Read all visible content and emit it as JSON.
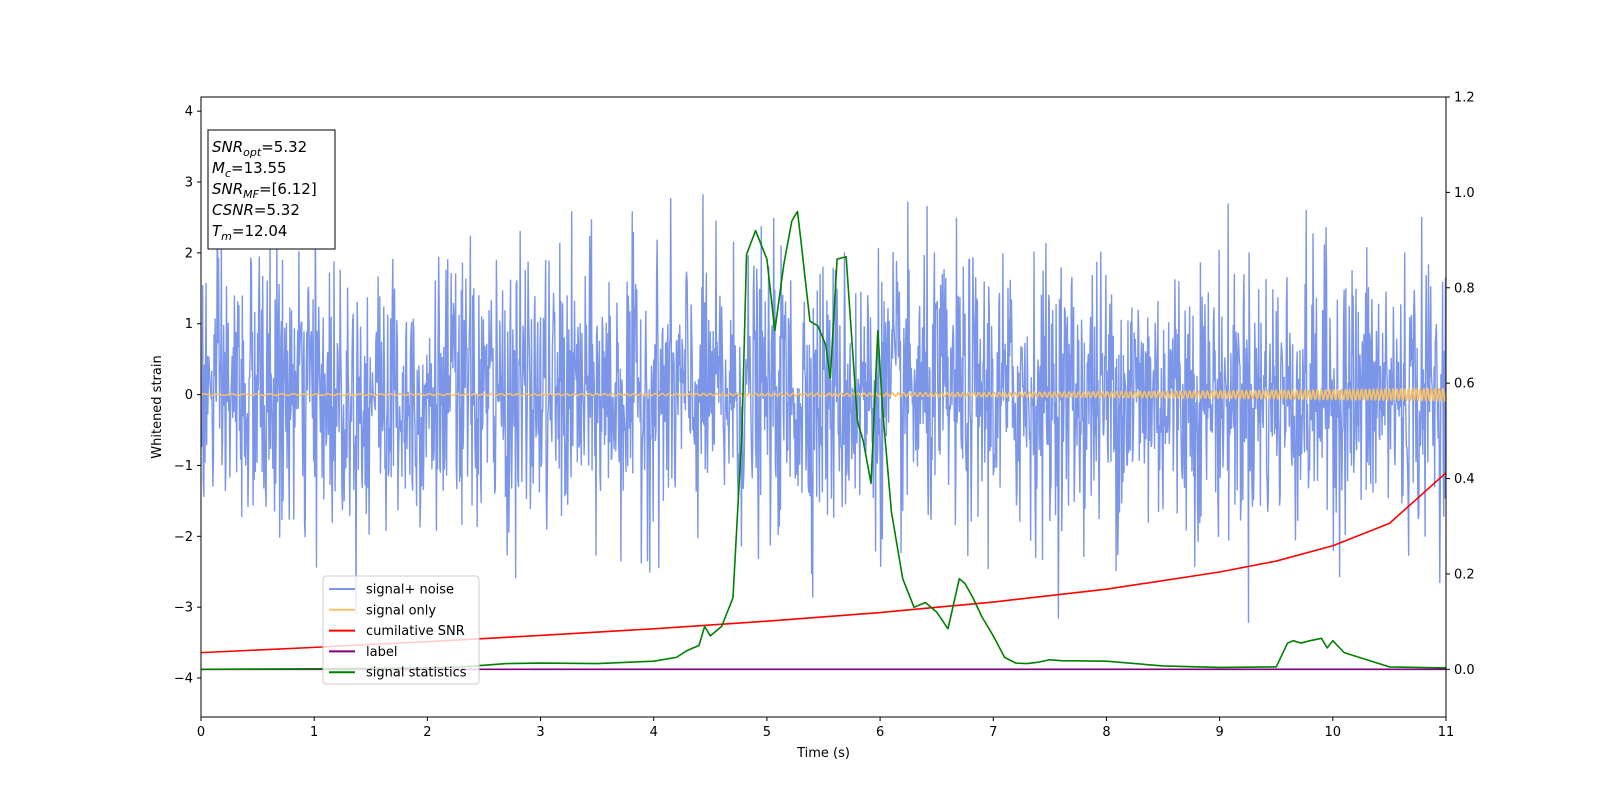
{
  "chart_data": {
    "type": "line",
    "xlabel": "Time (s)",
    "ylabel": "Whitened strain",
    "y2label": "",
    "xlim": [
      0,
      11
    ],
    "ylim": [
      -4.55,
      4.2
    ],
    "y2lim": [
      -0.1,
      1.2
    ],
    "grid": false,
    "legend_position": "lower-left",
    "x_ticks": [
      0,
      1,
      2,
      3,
      4,
      5,
      6,
      7,
      8,
      9,
      10,
      11
    ],
    "y_ticks": [
      4,
      3,
      2,
      1,
      0,
      -1,
      -2,
      -3,
      -4
    ],
    "y_tick_labels": [
      "4",
      "3",
      "2",
      "1",
      "0",
      "−1",
      "−2",
      "−3",
      "−4"
    ],
    "y2_ticks": [
      0.0,
      0.2,
      0.4,
      0.6,
      0.8,
      1.0,
      1.2
    ],
    "y2_tick_labels": [
      "0.0",
      "0.2",
      "0.4",
      "0.6",
      "0.8",
      "1.0",
      "1.2"
    ],
    "info_box": [
      {
        "main": "SNR",
        "sub": "opt",
        "rest": "=5.32"
      },
      {
        "main": "M",
        "sub": "c",
        "rest": "=13.55"
      },
      {
        "main": "SNR",
        "sub": "MF",
        "rest": "=[6.12]"
      },
      {
        "main": "CSNR",
        "sub": "",
        "rest": "=5.32"
      },
      {
        "main": "T",
        "sub": "m",
        "rest": "=12.04"
      }
    ],
    "series": [
      {
        "name": "signal+ noise",
        "color": "#7b96e8",
        "axis": "left",
        "kind": "noise",
        "sample_count": 2200,
        "sigma": 0.95,
        "clip": [
          -4.15,
          3.8
        ]
      },
      {
        "name": "signal only",
        "color": "#f5c06a",
        "axis": "left",
        "kind": "chirp",
        "amplitude_start": 0.01,
        "amplitude_end": 0.09,
        "freq_start_hz": 8,
        "freq_end_hz": 30
      },
      {
        "name": "cumilative SNR",
        "color": "#ff0000",
        "axis": "right",
        "x": [
          0,
          1,
          2,
          3,
          4,
          5,
          6,
          7,
          8,
          9,
          9.5,
          10,
          10.5,
          11
        ],
        "y": [
          0.035,
          0.046,
          0.058,
          0.071,
          0.085,
          0.101,
          0.119,
          0.141,
          0.168,
          0.204,
          0.227,
          0.259,
          0.306,
          0.412
        ]
      },
      {
        "name": "label",
        "color": "#800080",
        "axis": "right",
        "x": [
          0,
          11
        ],
        "y": [
          0.0,
          0.0
        ]
      },
      {
        "name": "signal statistics",
        "color": "#008000",
        "axis": "right",
        "x": [
          0,
          1,
          2,
          2.3,
          2.7,
          3.0,
          3.5,
          4.0,
          4.2,
          4.3,
          4.4,
          4.45,
          4.5,
          4.6,
          4.7,
          4.78,
          4.82,
          4.9,
          5.0,
          5.07,
          5.15,
          5.22,
          5.27,
          5.3,
          5.38,
          5.45,
          5.52,
          5.56,
          5.62,
          5.7,
          5.8,
          5.85,
          5.92,
          5.98,
          6.02,
          6.1,
          6.2,
          6.3,
          6.4,
          6.5,
          6.6,
          6.7,
          6.75,
          6.82,
          6.9,
          7.0,
          7.1,
          7.2,
          7.3,
          7.4,
          7.5,
          7.6,
          8.0,
          8.5,
          9.0,
          9.5,
          9.6,
          9.65,
          9.72,
          9.8,
          9.9,
          9.95,
          10.0,
          10.1,
          10.3,
          10.5,
          11.0
        ],
        "y": [
          0.0,
          0.001,
          0.003,
          0.005,
          0.012,
          0.013,
          0.012,
          0.017,
          0.025,
          0.04,
          0.05,
          0.09,
          0.07,
          0.09,
          0.15,
          0.5,
          0.87,
          0.92,
          0.86,
          0.71,
          0.85,
          0.94,
          0.96,
          0.9,
          0.73,
          0.72,
          0.68,
          0.61,
          0.86,
          0.865,
          0.52,
          0.48,
          0.39,
          0.71,
          0.55,
          0.33,
          0.19,
          0.13,
          0.14,
          0.12,
          0.085,
          0.19,
          0.18,
          0.15,
          0.11,
          0.07,
          0.025,
          0.013,
          0.012,
          0.015,
          0.02,
          0.018,
          0.017,
          0.007,
          0.004,
          0.005,
          0.055,
          0.06,
          0.055,
          0.06,
          0.065,
          0.045,
          0.06,
          0.035,
          0.02,
          0.005,
          0.003
        ]
      }
    ]
  }
}
